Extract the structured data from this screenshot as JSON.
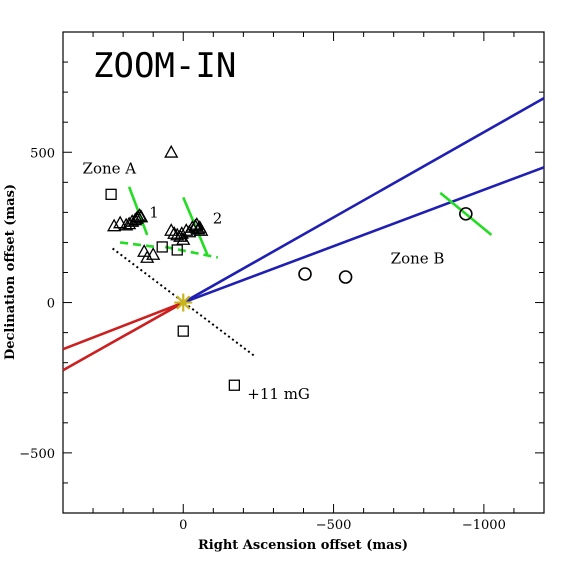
{
  "chart_data": {
    "type": "scatter",
    "title": "ZOOM-IN",
    "xlabel": "Right Ascension offset (mas)",
    "ylabel": "Declination offset (mas)",
    "xlim": [
      400,
      -1200
    ],
    "ylim": [
      -700,
      900
    ],
    "x_ticks": [
      0,
      -500,
      -1000
    ],
    "y_ticks": [
      -500,
      0,
      500
    ],
    "x_tick_labels": [
      "0",
      "−500",
      "−1000"
    ],
    "y_tick_labels": [
      "−500",
      "0",
      "500"
    ],
    "annotations": [
      {
        "text": "Zone A",
        "x": 335,
        "y": 430
      },
      {
        "text": "Zone B",
        "x": -690,
        "y": 130
      },
      {
        "text": "1",
        "x": 113,
        "y": 283
      },
      {
        "text": "2",
        "x": -98,
        "y": 263
      },
      {
        "text": "+11 mG",
        "x": -213,
        "y": -320
      }
    ],
    "series": [
      {
        "marker": "triangle",
        "x": [
          230,
          210,
          190,
          180,
          170,
          160,
          155,
          150,
          145,
          140,
          130,
          120,
          100,
          40,
          30,
          20,
          10,
          5,
          0,
          -10,
          -20,
          -30,
          -40,
          -45,
          -50,
          -55,
          -60,
          40
        ],
        "y": [
          255,
          265,
          258,
          262,
          270,
          275,
          280,
          285,
          290,
          285,
          170,
          150,
          160,
          240,
          230,
          225,
          220,
          230,
          210,
          240,
          235,
          250,
          255,
          260,
          245,
          250,
          240,
          500
        ]
      },
      {
        "marker": "square",
        "x": [
          240,
          70,
          20,
          0,
          -170
        ],
        "y": [
          360,
          185,
          175,
          -95,
          -275
        ]
      },
      {
        "marker": "circle",
        "x": [
          -405,
          -540,
          -940
        ],
        "y": [
          95,
          85,
          295
        ]
      }
    ],
    "lines": [
      {
        "color": "#1f1fb4",
        "x": [
          0,
          -1200
        ],
        "y": [
          0,
          680
        ]
      },
      {
        "color": "#1f1fb4",
        "x": [
          0,
          -1200
        ],
        "y": [
          0,
          450
        ]
      },
      {
        "color": "#cc1f1f",
        "x": [
          0,
          400
        ],
        "y": [
          0,
          -155
        ]
      },
      {
        "color": "#cc1f1f",
        "x": [
          0,
          400
        ],
        "y": [
          0,
          -225
        ]
      },
      {
        "color": "#000000",
        "style": "dotted",
        "x": [
          235,
          -240
        ],
        "y": [
          180,
          -180
        ]
      },
      {
        "color": "#22dd22",
        "x": [
          180,
          120
        ],
        "y": [
          385,
          225
        ]
      },
      {
        "color": "#22dd22",
        "x": [
          0,
          -80
        ],
        "y": [
          350,
          160
        ]
      },
      {
        "color": "#22dd22",
        "x": [
          -855,
          -1025
        ],
        "y": [
          365,
          225
        ]
      },
      {
        "color": "#22dd22",
        "style": "dashed",
        "x": [
          210,
          90
        ],
        "y": [
          200,
          185
        ]
      },
      {
        "color": "#22dd22",
        "style": "dashed",
        "x": [
          60,
          -115
        ],
        "y": [
          185,
          150
        ]
      }
    ],
    "origin_marker": {
      "color": "#c8b41e",
      "x": 0,
      "y": 0
    },
    "grid": false
  }
}
